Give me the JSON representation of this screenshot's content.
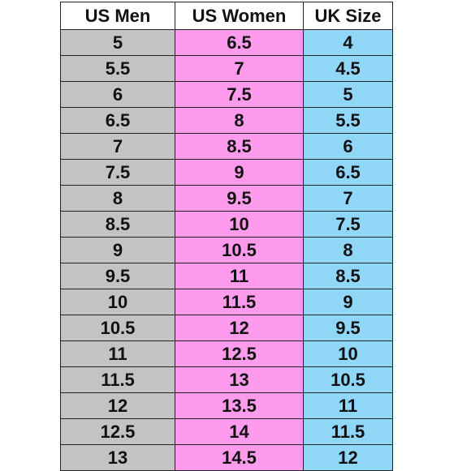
{
  "table": {
    "headers": [
      "US Men",
      "US Women",
      "UK Size"
    ],
    "rows": [
      [
        "5",
        "6.5",
        "4"
      ],
      [
        "5.5",
        "7",
        "4.5"
      ],
      [
        "6",
        "7.5",
        "5"
      ],
      [
        "6.5",
        "8",
        "5.5"
      ],
      [
        "7",
        "8.5",
        "6"
      ],
      [
        "7.5",
        "9",
        "6.5"
      ],
      [
        "8",
        "9.5",
        "7"
      ],
      [
        "8.5",
        "10",
        "7.5"
      ],
      [
        "9",
        "10.5",
        "8"
      ],
      [
        "9.5",
        "11",
        "8.5"
      ],
      [
        "10",
        "11.5",
        "9"
      ],
      [
        "10.5",
        "12",
        "9.5"
      ],
      [
        "11",
        "12.5",
        "10"
      ],
      [
        "11.5",
        "13",
        "10.5"
      ],
      [
        "12",
        "13.5",
        "11"
      ],
      [
        "12.5",
        "14",
        "11.5"
      ],
      [
        "13",
        "14.5",
        "12"
      ]
    ],
    "colors": {
      "us_men": "#c3c3c3",
      "us_women": "#ff9bed",
      "uk_size": "#8fd6f7"
    }
  }
}
